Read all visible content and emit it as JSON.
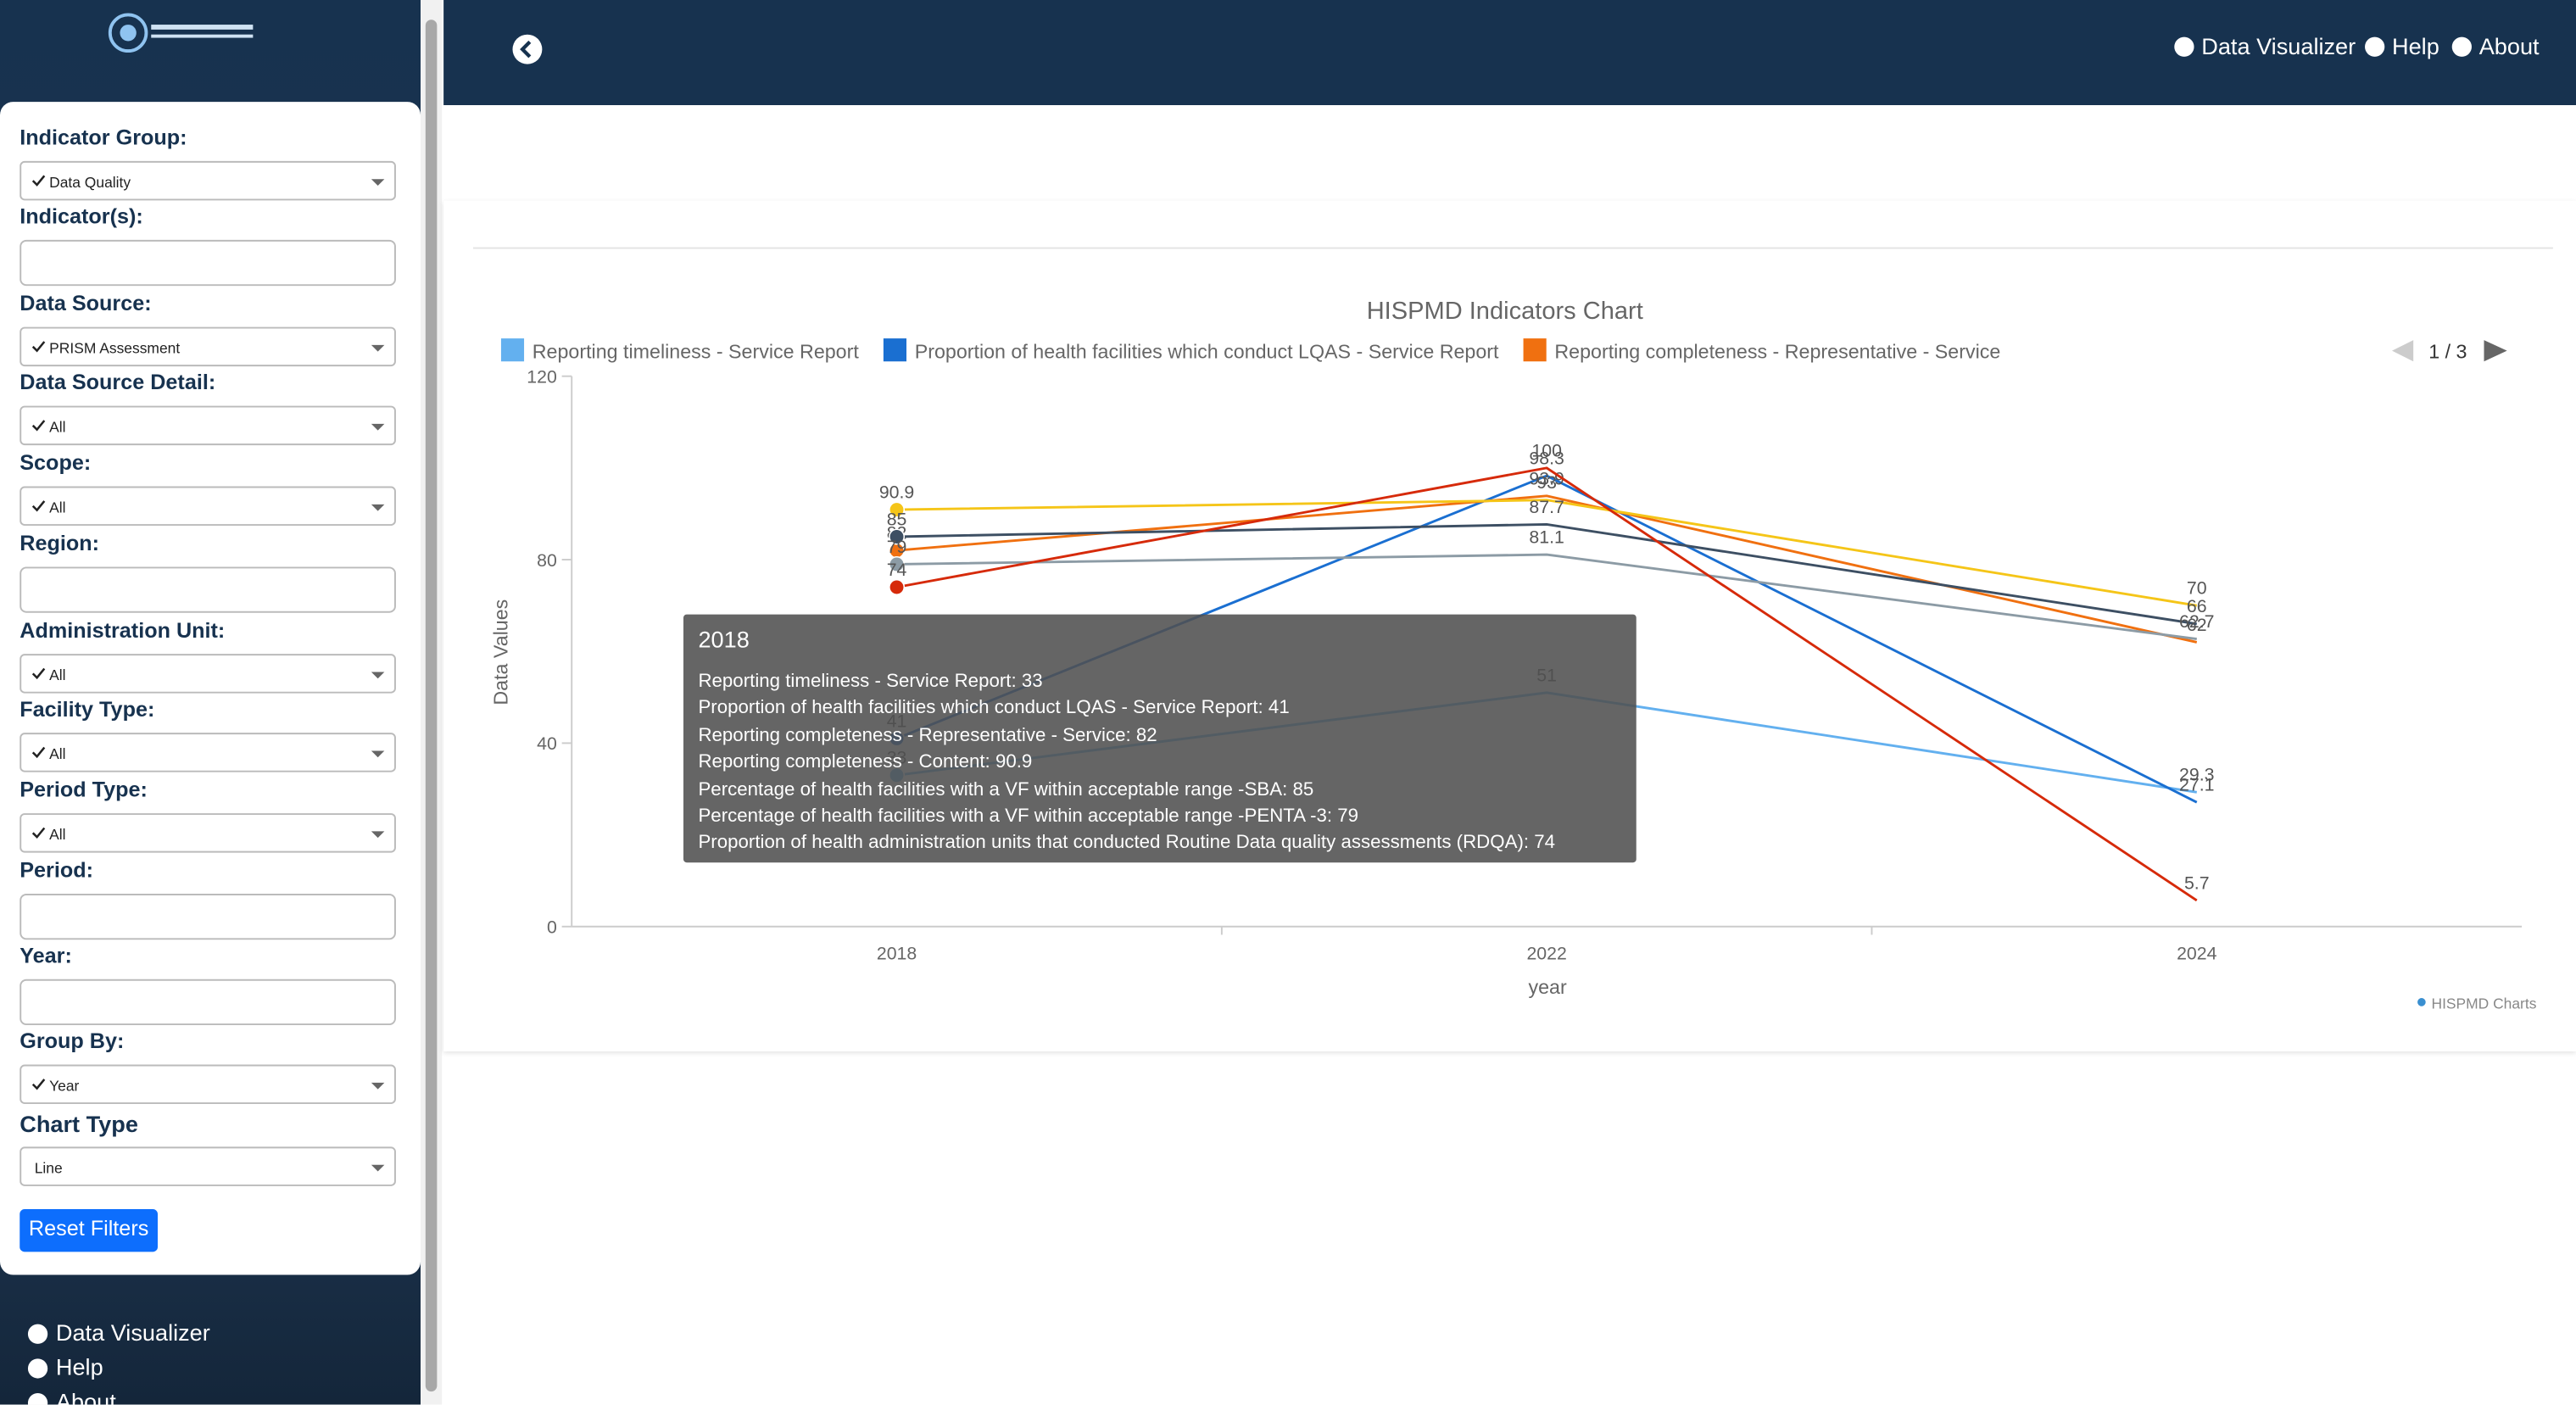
{
  "sidebar": {
    "filters": [
      {
        "label": "Indicator Group:",
        "value": "Data Quality"
      },
      {
        "label": "Indicator(s):"
      },
      {
        "label": "Data Source:",
        "value": "PRISM Assessment"
      },
      {
        "label": "Data Source Detail:",
        "value": "All"
      },
      {
        "label": "Scope:",
        "value": "All"
      },
      {
        "label": "Region:"
      },
      {
        "label": "Administration Unit:",
        "value": "All"
      },
      {
        "label": "Facility Type:",
        "value": "All"
      },
      {
        "label": "Period Type:",
        "value": "All"
      },
      {
        "label": "Period:"
      },
      {
        "label": "Year:"
      },
      {
        "label": "Group By:",
        "value": "Year"
      }
    ],
    "chart_type_label": "Chart Type",
    "chart_type": "Line",
    "reset": "Reset Filters",
    "nav": [
      "Data Visualizer",
      "Help",
      "About"
    ]
  },
  "header": {
    "nav": [
      "Data Visualizer",
      "Help",
      "About"
    ]
  },
  "chart_data": {
    "type": "line",
    "title": "HISPMD Indicators Chart",
    "x_label": "year",
    "y_label": "Data Values",
    "categories": [
      "2018",
      "2022",
      "2024"
    ],
    "ylim": [
      0,
      120
    ],
    "yticks": [
      0,
      40,
      80,
      120
    ],
    "legend_page": "1 / 3",
    "credits": "HISPMD Charts",
    "series": [
      {
        "name": "Reporting timeliness - Service Report",
        "color": "#63b0ef",
        "values": [
          33,
          51,
          29.3
        ]
      },
      {
        "name": "Proportion of health facilities which conduct LQAS - Service Report",
        "color": "#1a6fd1",
        "values": [
          41,
          98.3,
          27.1
        ]
      },
      {
        "name": "Reporting completeness - Representative - Service",
        "color": "#f07010",
        "values": [
          82,
          93.9,
          62
        ]
      },
      {
        "name": "Reporting completeness - Content",
        "color": "#f5c518",
        "values": [
          90.9,
          93,
          70
        ]
      },
      {
        "name": "Percentage of health facilities with a VF within acceptable range -SBA",
        "color": "#3d4f63",
        "values": [
          85,
          87.7,
          66
        ]
      },
      {
        "name": "Percentage of health facilities with a VF within acceptable range -PENTA -3",
        "color": "#8c9ba5",
        "values": [
          79,
          81.1,
          62.7
        ]
      },
      {
        "name": "Proportion of health administration units that conducted Routine Data quality assessments (RDQA)",
        "color": "#d62a0a",
        "values": [
          74,
          100,
          5.7
        ]
      }
    ],
    "tooltip_title": "2018"
  }
}
